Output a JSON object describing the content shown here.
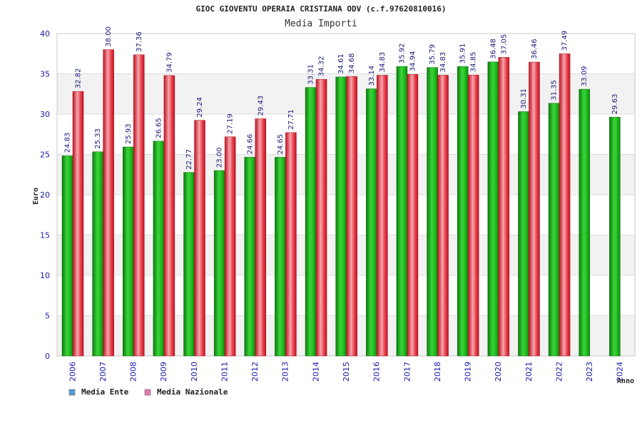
{
  "chart_data": {
    "type": "bar",
    "title": "GIOC GIOVENTU OPERAIA CRISTIANA ODV (c.f.97620810016)",
    "subtitle": "Media Importi",
    "xlabel": "Anno",
    "ylabel": "Euro",
    "ylim": [
      0,
      40
    ],
    "yticks": [
      0,
      5,
      10,
      15,
      20,
      25,
      30,
      35,
      40
    ],
    "grid": true,
    "legend_position": "bottom-left",
    "categories": [
      "2006",
      "2007",
      "2008",
      "2009",
      "2010",
      "2011",
      "2012",
      "2013",
      "2014",
      "2015",
      "2016",
      "2017",
      "2018",
      "2019",
      "2020",
      "2021",
      "2022",
      "2023",
      "2024"
    ],
    "series": [
      {
        "name": "Media Ente",
        "legend_color": "#5b9bd5",
        "bar_color": "#18b418",
        "values": [
          24.83,
          25.33,
          25.93,
          26.65,
          22.77,
          23.0,
          24.66,
          24.65,
          33.31,
          34.61,
          33.14,
          35.92,
          35.79,
          35.91,
          36.48,
          30.31,
          31.35,
          33.09,
          29.63
        ],
        "labels": [
          "24.83",
          "25.33",
          "25.93",
          "26.65",
          "22.77",
          "23.00",
          "24.66",
          "24.65",
          "33.31",
          "34.61",
          "33.14",
          "35.92",
          "35.79",
          "35.91",
          "36.48",
          "30.31",
          "31.35",
          "33.09",
          "29.63"
        ]
      },
      {
        "name": "Media Nazionale",
        "legend_color": "#e07bb0",
        "bar_color": "#e8202c",
        "values": [
          32.82,
          38.0,
          37.36,
          34.79,
          29.24,
          27.19,
          29.43,
          27.71,
          34.32,
          34.68,
          34.83,
          34.94,
          34.83,
          34.85,
          37.05,
          36.46,
          37.49,
          null,
          null
        ],
        "labels": [
          "32.82",
          "38.00",
          "37.36",
          "34.79",
          "29.24",
          "27.19",
          "29.43",
          "27.71",
          "34.32",
          "34.68",
          "34.83",
          "34.94",
          "34.83",
          "34.85",
          "37.05",
          "36.46",
          "37.49",
          "",
          ""
        ]
      }
    ]
  }
}
